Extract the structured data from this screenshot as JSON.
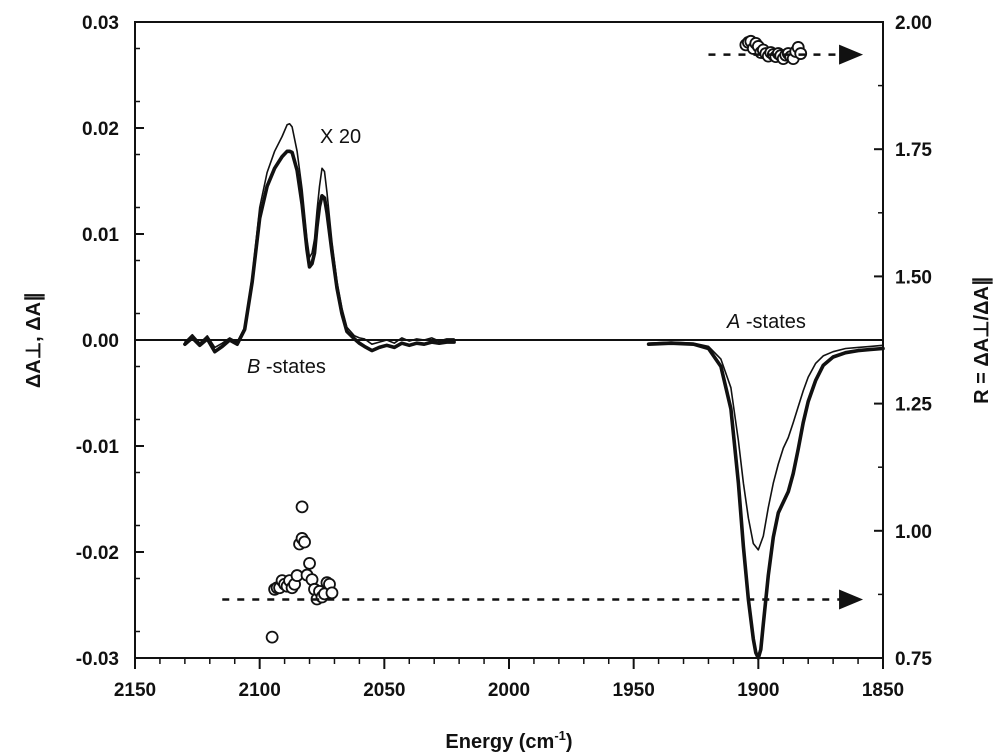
{
  "chart_data": {
    "type": "line",
    "xlabel_main": "Energy (cm",
    "xlabel_sup": "-1",
    "xlabel_end": ")",
    "ylabel_left": "ΔA⊥, ΔA∥",
    "ylabel_right": "R = ΔA⊥/ΔA∥",
    "xlim": [
      2150,
      1850
    ],
    "ylim_left": [
      -0.03,
      0.03
    ],
    "ylim_right": [
      0.75,
      2.0
    ],
    "x_ticks": [
      2150,
      2100,
      2050,
      2000,
      1950,
      1900,
      1850
    ],
    "x_tick_labels": [
      "2150",
      "2100",
      "2050",
      "2000",
      "1950",
      "1900",
      "1850"
    ],
    "y_left_ticks": [
      -0.03,
      -0.02,
      -0.01,
      0.0,
      0.01,
      0.02,
      0.03
    ],
    "y_left_tick_labels": [
      "-0.03",
      "-0.02",
      "-0.01",
      "0.00",
      "0.01",
      "0.02",
      "0.03"
    ],
    "y_right_ticks": [
      0.75,
      1.0,
      1.25,
      1.5,
      1.75,
      2.0
    ],
    "y_right_tick_labels": [
      "0.75",
      "1.00",
      "1.25",
      "1.50",
      "1.75",
      "2.00"
    ],
    "annotations": {
      "x20": "X 20",
      "b_states_italic": "B",
      "b_states_rest": " -states",
      "a_states_italic": "A",
      "a_states_rest": " -states"
    },
    "series": [
      {
        "axis": "left",
        "style": "thin",
        "x": [
          2130,
          2127,
          2124,
          2121,
          2118,
          2115,
          2112,
          2109,
          2106,
          2103,
          2100,
          2097,
          2094,
          2091,
          2089,
          2088,
          2087,
          2085,
          2083,
          2081,
          2080,
          2079,
          2078,
          2077,
          2076,
          2075,
          2074,
          2073,
          2071,
          2069,
          2067,
          2065,
          2062,
          2060,
          2058,
          2055,
          2052,
          2049,
          2046,
          2043,
          2040,
          2037,
          2034,
          2031,
          2028,
          2025,
          2022
        ],
        "y": [
          -0.0002,
          0.0005,
          -0.0003,
          0.0004,
          -0.0007,
          -0.0003,
          0.0002,
          -0.0002,
          0.0012,
          0.006,
          0.0125,
          0.0158,
          0.0178,
          0.0192,
          0.0203,
          0.0204,
          0.0201,
          0.0178,
          0.0142,
          0.0095,
          0.0078,
          0.0082,
          0.0095,
          0.0122,
          0.0145,
          0.0162,
          0.0159,
          0.0139,
          0.0092,
          0.0055,
          0.003,
          0.0012,
          0.0004,
          0.0002,
          0.0001,
          -0.0004,
          -0.0002,
          0.0,
          -0.0003,
          0.0002,
          -0.0001,
          0.0001,
          0.0,
          0.0002,
          -0.0001,
          0.0001,
          0.0001
        ]
      },
      {
        "axis": "left",
        "style": "thick",
        "x": [
          2130,
          2127,
          2124,
          2121,
          2118,
          2115,
          2112,
          2109,
          2106,
          2103,
          2100,
          2097,
          2094,
          2091,
          2089,
          2088,
          2087,
          2085,
          2083,
          2081,
          2080,
          2079,
          2078,
          2077,
          2076,
          2075,
          2074,
          2073,
          2071,
          2069,
          2067,
          2065,
          2062,
          2060,
          2058,
          2055,
          2052,
          2049,
          2046,
          2043,
          2040,
          2037,
          2034,
          2031,
          2028,
          2025,
          2022
        ],
        "y": [
          -0.0004,
          0.0002,
          -0.0005,
          0.0001,
          -0.0011,
          -0.0006,
          0.0,
          -0.0004,
          0.001,
          0.0055,
          0.0115,
          0.0145,
          0.0162,
          0.0173,
          0.0178,
          0.0178,
          0.0177,
          0.016,
          0.0128,
          0.0085,
          0.0069,
          0.0072,
          0.0082,
          0.0107,
          0.0126,
          0.0136,
          0.0134,
          0.012,
          0.0083,
          0.0049,
          0.0025,
          0.0008,
          0.0001,
          -0.0003,
          -0.0006,
          -0.001,
          -0.0007,
          -0.0005,
          -0.0007,
          -0.0003,
          -0.0005,
          -0.0003,
          -0.0004,
          -0.0002,
          -0.0003,
          -0.0002,
          -0.0002
        ]
      },
      {
        "axis": "left",
        "style": "thin",
        "x": [
          1944,
          1935,
          1926,
          1920,
          1915,
          1911,
          1908,
          1906,
          1904,
          1902,
          1900,
          1898,
          1896,
          1894,
          1892,
          1890,
          1888,
          1886,
          1884,
          1882,
          1880,
          1877,
          1874,
          1870,
          1865,
          1860,
          1855,
          1850
        ],
        "y": [
          -0.0003,
          -0.0002,
          -0.0003,
          -0.0006,
          -0.0018,
          -0.0045,
          -0.0095,
          -0.0135,
          -0.0168,
          -0.0192,
          -0.0198,
          -0.0185,
          -0.0158,
          -0.0135,
          -0.0117,
          -0.0102,
          -0.0092,
          -0.0078,
          -0.0063,
          -0.0048,
          -0.0035,
          -0.0022,
          -0.0015,
          -0.0011,
          -0.0008,
          -0.0007,
          -0.0006,
          -0.0005
        ]
      },
      {
        "axis": "left",
        "style": "thick",
        "x": [
          1944,
          1935,
          1926,
          1920,
          1915,
          1911,
          1908,
          1906,
          1904,
          1902,
          1901,
          1900,
          1899,
          1898,
          1896,
          1894,
          1892,
          1890,
          1888,
          1886,
          1884,
          1882,
          1880,
          1877,
          1874,
          1870,
          1865,
          1860,
          1855,
          1850
        ],
        "y": [
          -0.0004,
          -0.0003,
          -0.0004,
          -0.0008,
          -0.0025,
          -0.0065,
          -0.0135,
          -0.0195,
          -0.0245,
          -0.0282,
          -0.0295,
          -0.03,
          -0.0292,
          -0.0268,
          -0.0222,
          -0.0186,
          -0.0163,
          -0.0153,
          -0.0143,
          -0.0126,
          -0.0103,
          -0.0078,
          -0.0058,
          -0.0038,
          -0.0024,
          -0.0016,
          -0.0012,
          -0.001,
          -0.0009,
          -0.0008
        ]
      },
      {
        "axis": "right",
        "style": "circles",
        "x": [
          2095,
          2094,
          2093,
          2092,
          2091,
          2090,
          2089,
          2088,
          2087,
          2086,
          2085,
          2084,
          2083,
          2083,
          2082,
          2081,
          2080,
          2079,
          2078,
          2077,
          2076,
          2075,
          2074,
          2073,
          2072,
          2071
        ],
        "y": [
          0.791,
          0.885,
          0.888,
          0.888,
          0.902,
          0.895,
          0.891,
          0.902,
          0.888,
          0.895,
          0.912,
          0.974,
          0.985,
          1.047,
          0.978,
          0.913,
          0.936,
          0.904,
          0.885,
          0.866,
          0.881,
          0.87,
          0.876,
          0.898,
          0.895,
          0.878
        ]
      },
      {
        "axis": "right",
        "style": "circles",
        "x": [
          1905,
          1904,
          1903,
          1902,
          1901,
          1900,
          1899,
          1898,
          1897,
          1896,
          1895,
          1894,
          1893,
          1892,
          1891,
          1890,
          1889,
          1888,
          1887,
          1886,
          1885,
          1884,
          1883
        ],
        "y": [
          1.955,
          1.96,
          1.962,
          1.948,
          1.958,
          1.952,
          1.94,
          1.945,
          1.938,
          1.933,
          1.94,
          1.936,
          1.932,
          1.938,
          1.934,
          1.928,
          1.935,
          1.938,
          1.932,
          1.928,
          1.942,
          1.95,
          1.938
        ]
      },
      {
        "axis": "right",
        "style": "dashed-arrow",
        "x": [
          2115,
          1858
        ],
        "y": [
          0.865,
          0.865
        ]
      },
      {
        "axis": "right",
        "style": "dashed-arrow",
        "x": [
          1920,
          1858
        ],
        "y": [
          1.936,
          1.936
        ]
      }
    ]
  }
}
